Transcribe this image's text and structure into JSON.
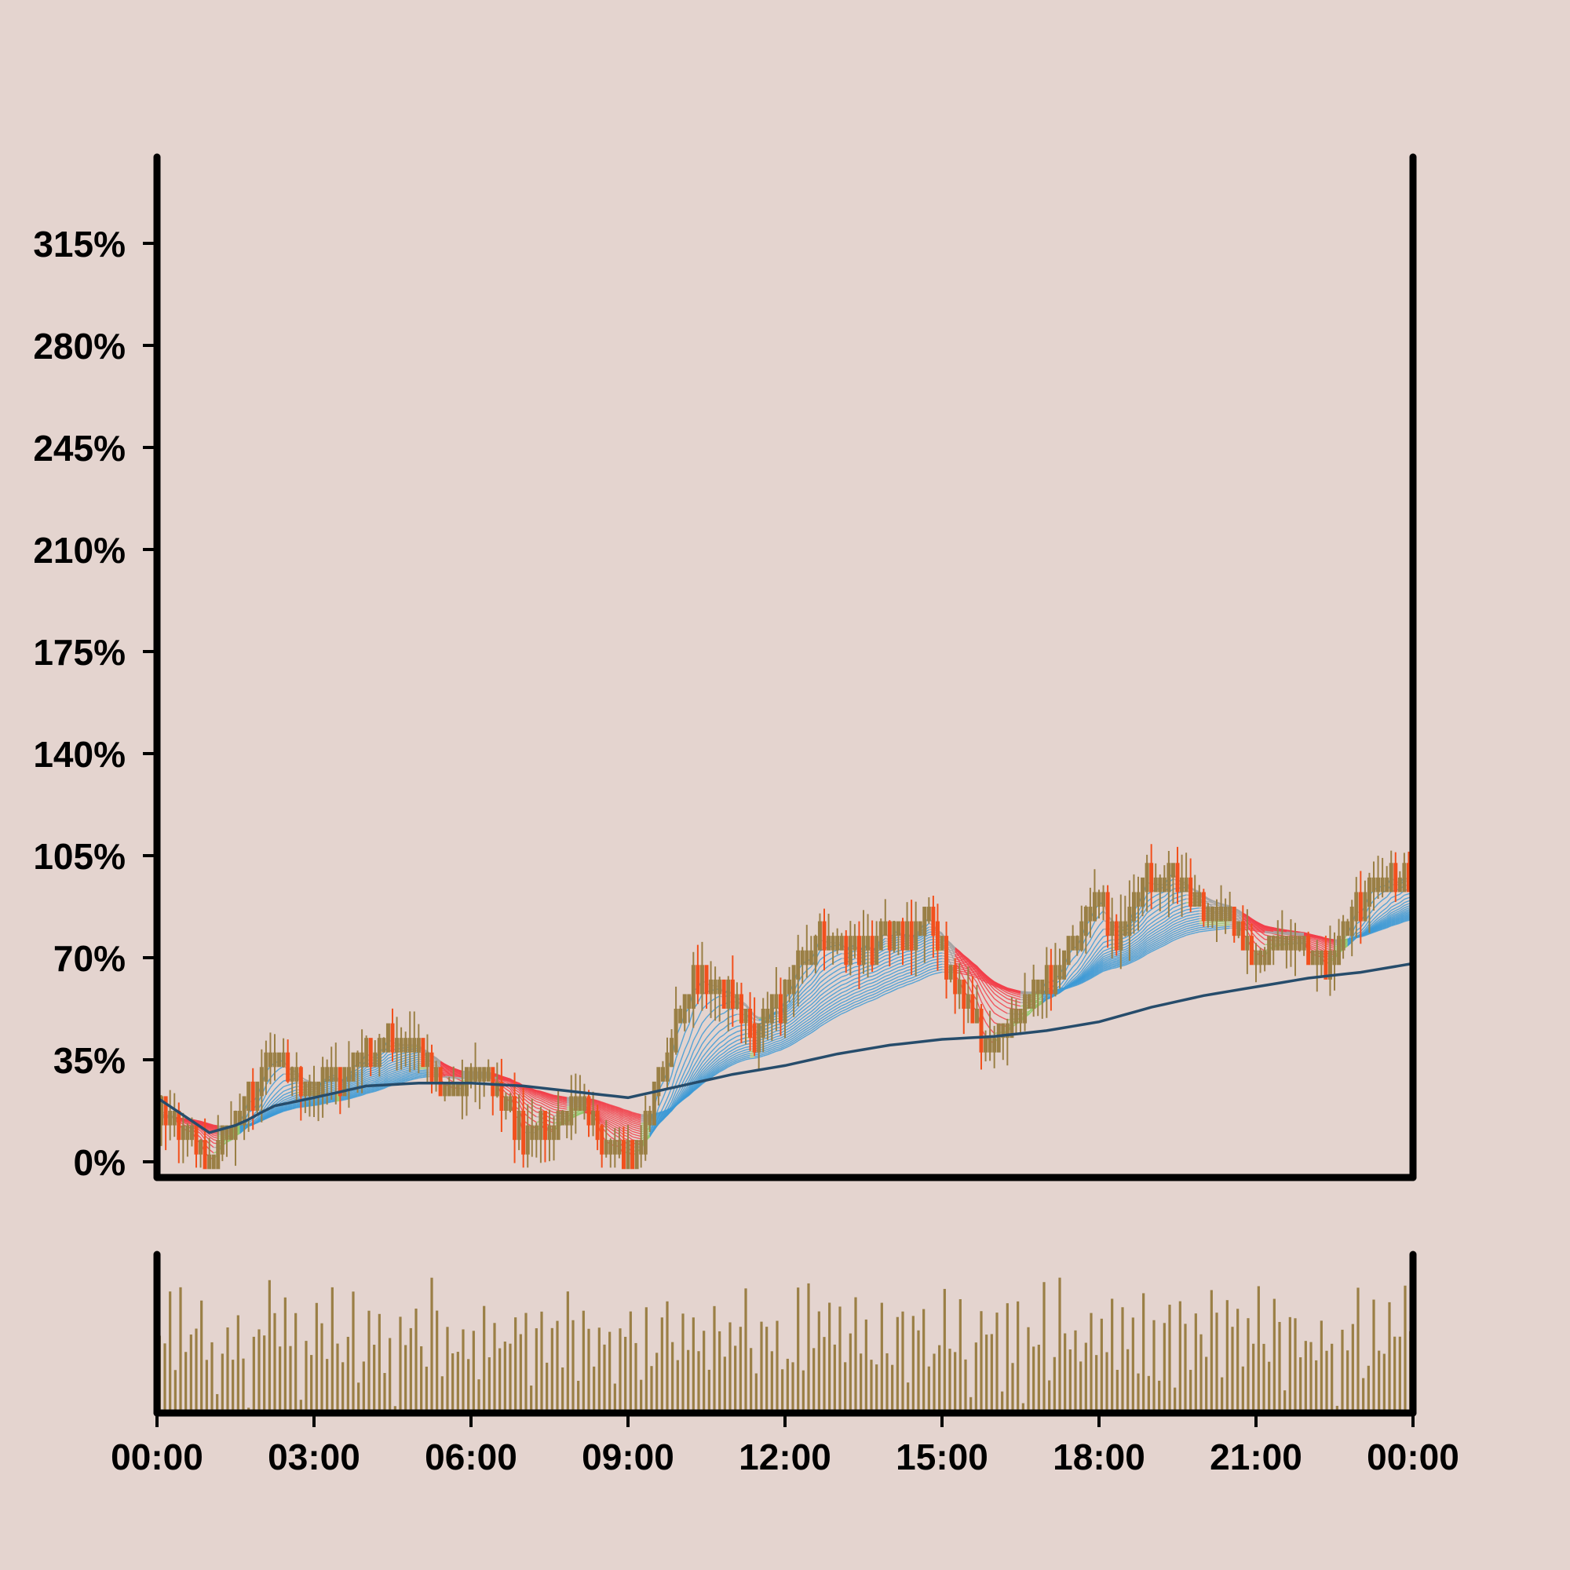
{
  "chart_data": [
    {
      "type": "candlestick",
      "title": "",
      "ylabel": "",
      "xlabel": "",
      "y_unit": "%",
      "y_ticks": [
        "0%",
        "35%",
        "70%",
        "105%",
        "140%",
        "175%",
        "210%",
        "245%",
        "280%",
        "315%"
      ],
      "ylim": [
        -2,
        350
      ],
      "x_ticks": [
        "00:00",
        "03:00",
        "06:00",
        "09:00",
        "12:00",
        "15:00",
        "18:00",
        "21:00",
        "00:00"
      ],
      "xlim_hours": [
        0,
        24
      ],
      "grid": false,
      "legend": "none",
      "colors": {
        "background": "#e4d4cf",
        "up": "#9a7f45",
        "down": "#f2501d",
        "ribbon_rising": "#3d9ad6",
        "ribbon_falling": "#f2404a",
        "ribbon_recovering": "#8fc96a",
        "ribbon_neutral": "#a3a3a3",
        "long_average": "#264c6b",
        "axis": "#000000"
      },
      "price_path": [
        [
          0.0,
          20
        ],
        [
          0.5,
          10
        ],
        [
          1.0,
          0
        ],
        [
          1.5,
          15
        ],
        [
          2.2,
          35
        ],
        [
          2.8,
          27
        ],
        [
          3.5,
          30
        ],
        [
          4.2,
          38
        ],
        [
          4.8,
          44
        ],
        [
          5.5,
          25
        ],
        [
          6.3,
          30
        ],
        [
          7.0,
          10
        ],
        [
          7.6,
          12
        ],
        [
          8.1,
          18
        ],
        [
          8.6,
          8
        ],
        [
          9.1,
          0
        ],
        [
          9.6,
          30
        ],
        [
          10.3,
          64
        ],
        [
          10.9,
          58
        ],
        [
          11.4,
          44
        ],
        [
          12.0,
          57
        ],
        [
          12.6,
          76
        ],
        [
          13.4,
          72
        ],
        [
          14.2,
          78
        ],
        [
          14.8,
          82
        ],
        [
          15.4,
          55
        ],
        [
          15.9,
          40
        ],
        [
          16.5,
          53
        ],
        [
          17.2,
          63
        ],
        [
          17.9,
          92
        ],
        [
          18.4,
          77
        ],
        [
          18.9,
          98
        ],
        [
          19.5,
          95
        ],
        [
          20.1,
          88
        ],
        [
          20.6,
          80
        ],
        [
          21.0,
          73
        ],
        [
          21.6,
          74
        ],
        [
          22.0,
          72
        ],
        [
          22.4,
          66
        ],
        [
          22.8,
          82
        ],
        [
          23.3,
          96
        ],
        [
          24.0,
          95
        ]
      ],
      "long_average": [
        [
          0.0,
          22
        ],
        [
          0.5,
          16
        ],
        [
          1.0,
          10
        ],
        [
          1.6,
          13
        ],
        [
          2.2,
          19
        ],
        [
          3.0,
          22
        ],
        [
          4.0,
          26
        ],
        [
          5.0,
          27
        ],
        [
          6.0,
          27
        ],
        [
          7.0,
          26
        ],
        [
          8.0,
          24
        ],
        [
          9.0,
          22
        ],
        [
          10.0,
          26
        ],
        [
          11.0,
          30
        ],
        [
          12.0,
          33
        ],
        [
          13.0,
          37
        ],
        [
          14.0,
          40
        ],
        [
          15.0,
          42
        ],
        [
          16.0,
          43
        ],
        [
          17.0,
          45
        ],
        [
          18.0,
          48
        ],
        [
          19.0,
          53
        ],
        [
          20.0,
          57
        ],
        [
          21.0,
          60
        ],
        [
          22.0,
          63
        ],
        [
          23.0,
          65
        ],
        [
          24.0,
          68
        ]
      ]
    },
    {
      "type": "bar",
      "title": "",
      "xlabel": "",
      "ylabel": "",
      "xlim_hours": [
        0,
        24
      ],
      "volume_pattern": [
        0.5,
        0.3,
        0.8,
        0.1,
        0.9,
        0.2,
        0.6,
        0.4,
        0.95,
        0.35,
        0.7,
        0.15,
        0.55,
        0.85,
        0.25,
        0.65,
        0.45,
        0.05,
        0.75,
        0.5,
        0.3,
        0.9,
        0.6,
        0.2,
        0.8,
        0.4,
        0.7,
        0.1,
        0.55,
        0.35,
        0.85,
        0.65,
        0.25,
        0.95,
        0.45,
        0.15,
        0.6,
        0.8,
        0.3,
        0.5,
        0.7,
        0.2,
        0.9,
        0.4,
        0.65,
        0.05,
        0.75,
        0.35,
        0.55,
        0.85,
        0.25,
        0.45,
        0.95,
        0.6,
        0.15,
        0.7,
        0.5,
        0.3,
        0.8,
        0.4
      ],
      "colors": {
        "bar": "#9a7f45",
        "axis": "#000000"
      }
    }
  ]
}
